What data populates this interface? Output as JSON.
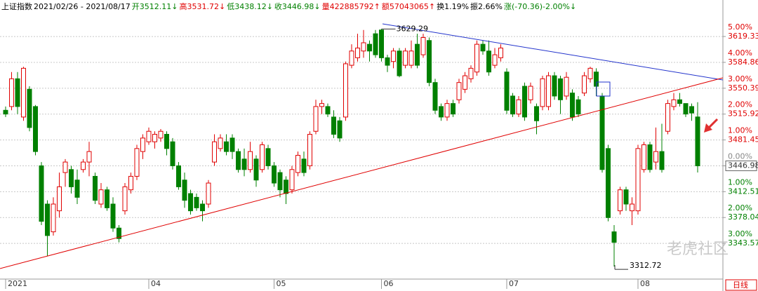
{
  "chart_data": {
    "type": "candlestick",
    "header": [
      {
        "text": "上证指数",
        "color": "#000000"
      },
      {
        "text": "2021/02/26 - 2021/08/17",
        "color": "#000000"
      },
      {
        "text": "开3512.11↓",
        "color": "#008000"
      },
      {
        "text": "高3531.72↓",
        "color": "#e00000"
      },
      {
        "text": "低3438.12↓",
        "color": "#008000"
      },
      {
        "text": "收3446.98↓",
        "color": "#008000"
      },
      {
        "text": "量422885792↑",
        "color": "#e00000"
      },
      {
        "text": "额57043065↑",
        "color": "#e00000"
      },
      {
        "text": "换1.19%",
        "color": "#000000"
      },
      {
        "text": "振2.66%",
        "color": "#000000"
      },
      {
        "text": "涨(-70.36)-2.00%↓",
        "color": "#008000"
      }
    ],
    "up_color": "#e00000",
    "down_color": "#008000",
    "categories": [
      "2021",
      null,
      null,
      null,
      null,
      null,
      null,
      null,
      null,
      null,
      null,
      null,
      null,
      null,
      null,
      null,
      null,
      null,
      null,
      null,
      null,
      null,
      null,
      null,
      "04",
      null,
      null,
      null,
      null,
      null,
      null,
      null,
      null,
      null,
      null,
      null,
      null,
      null,
      null,
      null,
      null,
      null,
      null,
      null,
      null,
      "05",
      null,
      null,
      null,
      null,
      null,
      null,
      null,
      null,
      null,
      null,
      null,
      null,
      null,
      null,
      null,
      null,
      null,
      "06",
      null,
      null,
      null,
      null,
      null,
      null,
      null,
      null,
      null,
      null,
      null,
      null,
      null,
      null,
      null,
      null,
      null,
      null,
      null,
      null,
      "07",
      null,
      null,
      null,
      null,
      null,
      null,
      null,
      null,
      null,
      null,
      null,
      null,
      null,
      null,
      null,
      null,
      null,
      null,
      null,
      null,
      null,
      "08",
      null,
      null,
      null,
      null,
      null,
      null,
      null,
      null,
      null,
      null
    ],
    "candles": [
      [
        3521,
        3526,
        3512,
        3516
      ],
      [
        3526,
        3572,
        3521,
        3563
      ],
      [
        3563,
        3572,
        3516,
        3526
      ],
      [
        3512,
        3579,
        3507,
        3577
      ],
      [
        3549,
        3553,
        3493,
        3498
      ],
      [
        3526,
        3528,
        3461,
        3466
      ],
      [
        3447,
        3452,
        3368,
        3373
      ],
      [
        3396,
        3401,
        3327,
        3354
      ],
      [
        3359,
        3405,
        3354,
        3396
      ],
      [
        3387,
        3438,
        3378,
        3419
      ],
      [
        3438,
        3456,
        3419,
        3452
      ],
      [
        3442,
        3447,
        3410,
        3419
      ],
      [
        3428,
        3442,
        3396,
        3405
      ],
      [
        3442,
        3456,
        3438,
        3452
      ],
      [
        3452,
        3479,
        3433,
        3466
      ],
      [
        3433,
        3438,
        3396,
        3401
      ],
      [
        3396,
        3424,
        3391,
        3415
      ],
      [
        3415,
        3419,
        3387,
        3391
      ],
      [
        3396,
        3405,
        3359,
        3364
      ],
      [
        3364,
        3368,
        3345,
        3350
      ],
      [
        3387,
        3424,
        3382,
        3419
      ],
      [
        3415,
        3438,
        3410,
        3433
      ],
      [
        3433,
        3475,
        3428,
        3470
      ],
      [
        3466,
        3489,
        3456,
        3484
      ],
      [
        3479,
        3498,
        3475,
        3493
      ],
      [
        3479,
        3493,
        3470,
        3489
      ],
      [
        3484,
        3496,
        3479,
        3493
      ],
      [
        3489,
        3493,
        3461,
        3470
      ],
      [
        3479,
        3484,
        3442,
        3447
      ],
      [
        3447,
        3452,
        3415,
        3419
      ],
      [
        3428,
        3438,
        3391,
        3401
      ],
      [
        3410,
        3415,
        3382,
        3387
      ],
      [
        3405,
        3410,
        3387,
        3391
      ],
      [
        3396,
        3401,
        3373,
        3387
      ],
      [
        3396,
        3428,
        3391,
        3424
      ],
      [
        3452,
        3489,
        3447,
        3479
      ],
      [
        3470,
        3489,
        3466,
        3484
      ],
      [
        3479,
        3489,
        3461,
        3466
      ],
      [
        3484,
        3489,
        3456,
        3466
      ],
      [
        3466,
        3470,
        3438,
        3442
      ],
      [
        3456,
        3470,
        3433,
        3442
      ],
      [
        3442,
        3479,
        3438,
        3466
      ],
      [
        3456,
        3461,
        3419,
        3428
      ],
      [
        3442,
        3479,
        3438,
        3475
      ],
      [
        3470,
        3475,
        3442,
        3447
      ],
      [
        3447,
        3452,
        3419,
        3424
      ],
      [
        3438,
        3442,
        3405,
        3415
      ],
      [
        3428,
        3433,
        3396,
        3410
      ],
      [
        3415,
        3447,
        3410,
        3442
      ],
      [
        3438,
        3466,
        3433,
        3461
      ],
      [
        3456,
        3466,
        3433,
        3438
      ],
      [
        3447,
        3493,
        3442,
        3489
      ],
      [
        3493,
        3535,
        3489,
        3526
      ],
      [
        3526,
        3535,
        3516,
        3530
      ],
      [
        3526,
        3530,
        3512,
        3516
      ],
      [
        3512,
        3521,
        3484,
        3489
      ],
      [
        3507,
        3512,
        3479,
        3484
      ],
      [
        3512,
        3586,
        3507,
        3583
      ],
      [
        3581,
        3609,
        3577,
        3600
      ],
      [
        3591,
        3623,
        3586,
        3604
      ],
      [
        3600,
        3628,
        3591,
        3611
      ],
      [
        3609,
        3614,
        3586,
        3600
      ],
      [
        3623,
        3628,
        3591,
        3595
      ],
      [
        3628,
        3629.29,
        3586,
        3591
      ],
      [
        3591,
        3595,
        3572,
        3581
      ],
      [
        3586,
        3604,
        3577,
        3600
      ],
      [
        3600,
        3604,
        3565,
        3567
      ],
      [
        3581,
        3604,
        3577,
        3600
      ],
      [
        3581,
        3614,
        3577,
        3600
      ],
      [
        3609,
        3623,
        3577,
        3581
      ],
      [
        3595,
        3623,
        3591,
        3618
      ],
      [
        3614,
        3618,
        3553,
        3558
      ],
      [
        3558,
        3563,
        3516,
        3521
      ],
      [
        3526,
        3530,
        3507,
        3512
      ],
      [
        3512,
        3535,
        3507,
        3530
      ],
      [
        3530,
        3535,
        3512,
        3516
      ],
      [
        3535,
        3563,
        3530,
        3558
      ],
      [
        3549,
        3572,
        3544,
        3567
      ],
      [
        3563,
        3581,
        3558,
        3577
      ],
      [
        3572,
        3614,
        3567,
        3609
      ],
      [
        3609,
        3614,
        3595,
        3600
      ],
      [
        3600,
        3614,
        3567,
        3572
      ],
      [
        3581,
        3604,
        3577,
        3595
      ],
      [
        3591,
        3609,
        3586,
        3604
      ],
      [
        3572,
        3577,
        3516,
        3521
      ],
      [
        3540,
        3544,
        3512,
        3516
      ],
      [
        3516,
        3540,
        3512,
        3535
      ],
      [
        3553,
        3558,
        3507,
        3512
      ],
      [
        3535,
        3558,
        3530,
        3553
      ],
      [
        3526,
        3530,
        3489,
        3507
      ],
      [
        3526,
        3567,
        3521,
        3563
      ],
      [
        3526,
        3572,
        3521,
        3567
      ],
      [
        3567,
        3572,
        3535,
        3540
      ],
      [
        3563,
        3567,
        3516,
        3535
      ],
      [
        3540,
        3572,
        3535,
        3565
      ],
      [
        3544,
        3549,
        3507,
        3512
      ],
      [
        3535,
        3540,
        3512,
        3516
      ],
      [
        3544,
        3572,
        3540,
        3567
      ],
      [
        3563,
        3579,
        3558,
        3577
      ],
      [
        3572,
        3577,
        3540,
        3553
      ],
      [
        3540,
        3544,
        3438,
        3442
      ],
      [
        3470,
        3475,
        3373,
        3378
      ],
      [
        3359,
        3368,
        3312.72,
        3345
      ],
      [
        3387,
        3419,
        3382,
        3415
      ],
      [
        3415,
        3419,
        3387,
        3396
      ],
      [
        3387,
        3405,
        3368,
        3396
      ],
      [
        3387,
        3475,
        3382,
        3470
      ],
      [
        3442,
        3479,
        3438,
        3475
      ],
      [
        3475,
        3479,
        3438,
        3442
      ],
      [
        3452,
        3498,
        3442,
        3466
      ],
      [
        3466,
        3503,
        3438,
        3442
      ],
      [
        3493,
        3535,
        3489,
        3530
      ],
      [
        3526,
        3544,
        3521,
        3535
      ],
      [
        3535,
        3544,
        3526,
        3530
      ],
      [
        3530,
        3530,
        3512,
        3516
      ],
      [
        3526,
        3530,
        3507,
        3517.34
      ],
      [
        3512.11,
        3531.72,
        3438.12,
        3446.98
      ]
    ],
    "ylim": [
      3296,
      3668
    ],
    "yticks": [
      3619.33,
      3584.86,
      3550.39,
      3515.92,
      3481.45,
      3446.98,
      3412.51,
      3378.04,
      3343.57
    ],
    "pct_ticks": [
      {
        "value": 3619.33,
        "label": "5.00%"
      },
      {
        "value": 3584.86,
        "label": "4.00%"
      },
      {
        "value": 3550.39,
        "label": "3.00%"
      },
      {
        "value": 3515.92,
        "label": "2.00%"
      },
      {
        "value": 3481.45,
        "label": "1.00%"
      },
      {
        "value": 3446.98,
        "label": "0.00%"
      },
      {
        "value": 3412.51,
        "label": "1.00%"
      },
      {
        "value": 3378.04,
        "label": "2.00%"
      },
      {
        "value": 3343.57,
        "label": "3.00%"
      }
    ],
    "grid": true,
    "annotations": [
      3629.29,
      3312.72
    ],
    "watermark": "老虎社区",
    "period": "日线"
  }
}
